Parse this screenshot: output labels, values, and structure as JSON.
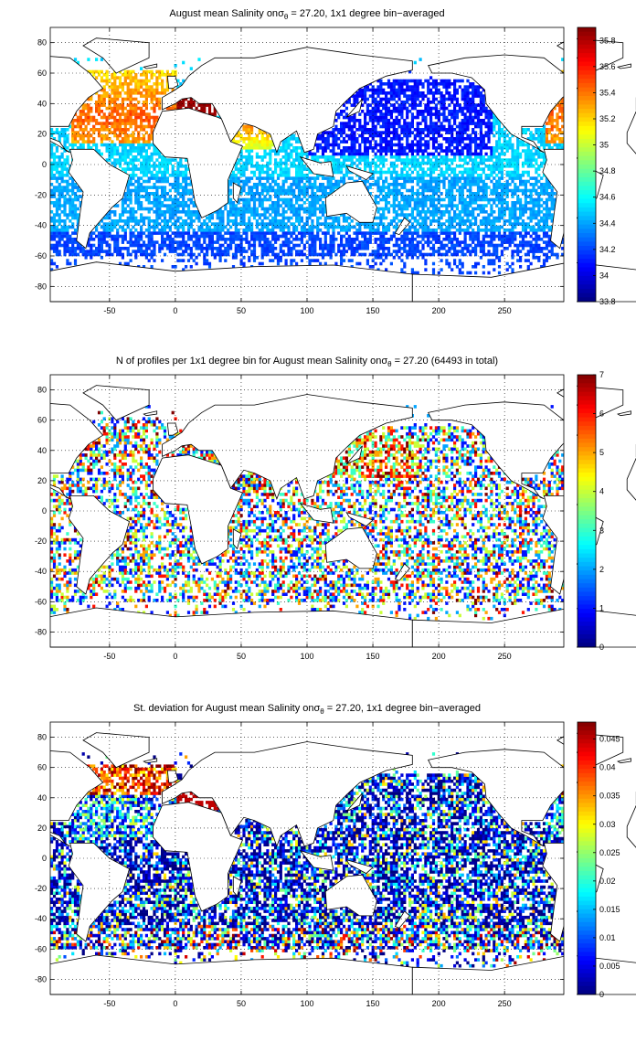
{
  "chart_data": [
    {
      "type": "heatmap",
      "title_pre": "August mean Salinity on",
      "title_sigma": "σ",
      "title_sub": "θ",
      "title_post": " = 27.20, 1x1 degree bin−averaged",
      "xlabel": "",
      "ylabel": "",
      "xlim": [
        -95,
        295
      ],
      "ylim": [
        -90,
        90
      ],
      "xticks": [
        -50,
        0,
        50,
        100,
        150,
        200,
        250
      ],
      "yticks": [
        80,
        60,
        40,
        20,
        0,
        -20,
        -40,
        -60,
        -80
      ],
      "grid": true,
      "colorbar": {
        "min": 33.8,
        "max": 35.9,
        "ticks": [
          "35.8",
          "35.6",
          "35.4",
          "35.2",
          "35",
          "34.8",
          "34.6",
          "34.4",
          "34.2",
          "34",
          "33.8"
        ],
        "values": [
          35.8,
          35.6,
          35.4,
          35.2,
          35.0,
          34.8,
          34.6,
          34.4,
          34.2,
          34.0,
          33.8
        ]
      },
      "colormap": "jet"
    },
    {
      "type": "heatmap",
      "title_pre": "N of profiles per 1x1 degree bin for August mean Salinity on",
      "title_sigma": "σ",
      "title_sub": "θ",
      "title_post": " = 27.20 (64493 in total)",
      "xlabel": "",
      "ylabel": "",
      "xlim": [
        -95,
        295
      ],
      "ylim": [
        -90,
        90
      ],
      "xticks": [
        -50,
        0,
        50,
        100,
        150,
        200,
        250
      ],
      "yticks": [
        80,
        60,
        40,
        20,
        0,
        -20,
        -40,
        -60,
        -80
      ],
      "grid": true,
      "colorbar": {
        "min": 0,
        "max": 7,
        "ticks": [
          "7",
          "6",
          "5",
          "4",
          "3",
          "2",
          "1",
          "0"
        ],
        "values": [
          7,
          6,
          5,
          4,
          3,
          2,
          1,
          0
        ]
      },
      "colormap": "jet",
      "total_profiles": 64493
    },
    {
      "type": "heatmap",
      "title_pre": "St. deviation for August mean Salinity on",
      "title_sigma": "σ",
      "title_sub": "θ",
      "title_post": " = 27.20, 1x1 degree bin−averaged",
      "xlabel": "",
      "ylabel": "",
      "xlim": [
        -95,
        295
      ],
      "ylim": [
        -90,
        90
      ],
      "xticks": [
        -50,
        0,
        50,
        100,
        150,
        200,
        250
      ],
      "yticks": [
        80,
        60,
        40,
        20,
        0,
        -20,
        -40,
        -60,
        -80
      ],
      "grid": true,
      "colorbar": {
        "min": 0,
        "max": 0.048,
        "ticks": [
          "0.045",
          "0.04",
          "0.035",
          "0.03",
          "0.025",
          "0.02",
          "0.015",
          "0.01",
          "0.005",
          "0"
        ],
        "values": [
          0.045,
          0.04,
          0.035,
          0.03,
          0.025,
          0.02,
          0.015,
          0.01,
          0.005,
          0
        ]
      },
      "colormap": "jet"
    }
  ]
}
